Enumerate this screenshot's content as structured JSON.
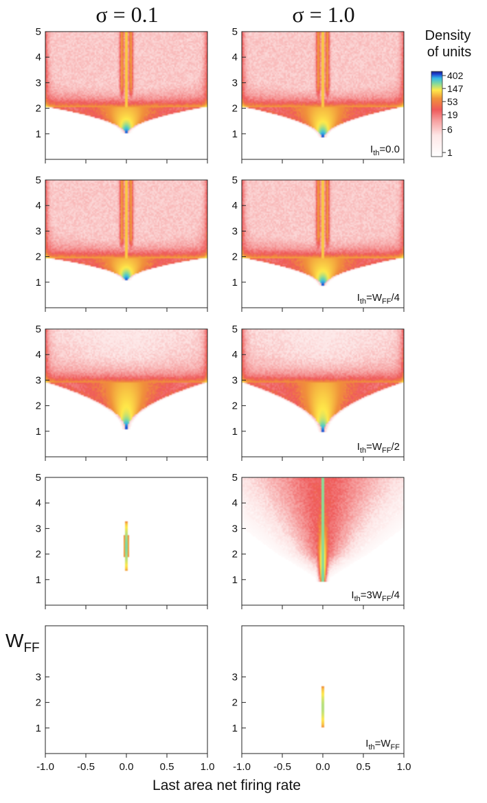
{
  "figure": {
    "column_titles": [
      "σ = 0.1",
      "σ = 1.0"
    ],
    "y_label": {
      "main": "W",
      "sub": "FF"
    },
    "x_label": "Last area net firing rate",
    "colorbar": {
      "title_line1": "Density",
      "title_line2": "of units",
      "ticks": [
        "402",
        "147",
        "53",
        "19",
        "6",
        "1"
      ],
      "tick_values": [
        402,
        147,
        53,
        19,
        6,
        1
      ],
      "range": [
        1,
        402
      ],
      "scale": "log",
      "colors": [
        "#ffffff",
        "#fde6e6",
        "#f6a0a0",
        "#ef5a5a",
        "#f0913a",
        "#ffe94a",
        "#7fd8a0",
        "#36b9e6",
        "#1c3fd0",
        "#1a237e"
      ]
    }
  },
  "chart_data": [
    {
      "type": "heatmap",
      "row": 1,
      "col": 1,
      "sigma": "0.1",
      "condition": "I_th=0.0",
      "annotation": null,
      "pattern": "fan",
      "params": {
        "w_on": 1.0,
        "w_spread": 2.05,
        "ridges": true
      },
      "xlim": [
        -1.0,
        1.0
      ],
      "ylim": [
        0,
        5
      ],
      "yticks": [
        "1",
        "2",
        "3",
        "4",
        "5"
      ],
      "xticks": [
        "-1.0",
        "-0.5",
        "0.0",
        "0.5",
        "1.0"
      ],
      "show_xtick_labels": false
    },
    {
      "type": "heatmap",
      "row": 1,
      "col": 2,
      "sigma": "1.0",
      "condition": "I_th=0.0",
      "annotation": {
        "main": "I",
        "sub": "th",
        "rest": "=0.0"
      },
      "pattern": "fan",
      "params": {
        "w_on": 0.85,
        "w_spread": 2.05,
        "ridges": true
      },
      "xlim": [
        -1.0,
        1.0
      ],
      "ylim": [
        0,
        5
      ],
      "yticks": [
        "1",
        "2",
        "3",
        "4",
        "5"
      ],
      "xticks": [
        "-1.0",
        "-0.5",
        "0.0",
        "0.5",
        "1.0"
      ],
      "show_xtick_labels": false
    },
    {
      "type": "heatmap",
      "row": 2,
      "col": 1,
      "sigma": "0.1",
      "condition": "I_th=W_FF/4",
      "annotation": null,
      "pattern": "fan",
      "params": {
        "w_on": 1.05,
        "w_spread": 1.95,
        "ridges": true
      },
      "xlim": [
        -1.0,
        1.0
      ],
      "ylim": [
        0,
        5
      ],
      "yticks": [
        "1",
        "2",
        "3",
        "4",
        "5"
      ],
      "xticks": [
        "-1.0",
        "-0.5",
        "0.0",
        "0.5",
        "1.0"
      ],
      "show_xtick_labels": false
    },
    {
      "type": "heatmap",
      "row": 2,
      "col": 2,
      "sigma": "1.0",
      "condition": "I_th=W_FF/4",
      "annotation": {
        "main": "I",
        "sub": "th",
        "rest": "=W",
        "sub2": "FF",
        "rest2": "/4"
      },
      "pattern": "fan",
      "params": {
        "w_on": 0.85,
        "w_spread": 1.95,
        "ridges": true
      },
      "xlim": [
        -1.0,
        1.0
      ],
      "ylim": [
        0,
        5
      ],
      "yticks": [
        "1",
        "2",
        "3",
        "4",
        "5"
      ],
      "xticks": [
        "-1.0",
        "-0.5",
        "0.0",
        "0.5",
        "1.0"
      ],
      "show_xtick_labels": false
    },
    {
      "type": "heatmap",
      "row": 3,
      "col": 1,
      "sigma": "0.1",
      "condition": "I_th=W_FF/2",
      "annotation": null,
      "pattern": "fan",
      "params": {
        "w_on": 1.1,
        "w_spread": 2.9,
        "ridges": false
      },
      "xlim": [
        -1.0,
        1.0
      ],
      "ylim": [
        0,
        5
      ],
      "yticks": [
        "1",
        "2",
        "3",
        "4",
        "5"
      ],
      "xticks": [
        "-1.0",
        "-0.5",
        "0.0",
        "0.5",
        "1.0"
      ],
      "show_xtick_labels": false
    },
    {
      "type": "heatmap",
      "row": 3,
      "col": 2,
      "sigma": "1.0",
      "condition": "I_th=W_FF/2",
      "annotation": {
        "main": "I",
        "sub": "th",
        "rest": "=W",
        "sub2": "FF",
        "rest2": "/2"
      },
      "pattern": "fan",
      "params": {
        "w_on": 0.95,
        "w_spread": 2.9,
        "ridges": false
      },
      "xlim": [
        -1.0,
        1.0
      ],
      "ylim": [
        0,
        5
      ],
      "yticks": [
        "1",
        "2",
        "3",
        "4",
        "5"
      ],
      "xticks": [
        "-1.0",
        "-0.5",
        "0.0",
        "0.5",
        "1.0"
      ],
      "show_xtick_labels": false
    },
    {
      "type": "heatmap",
      "row": 4,
      "col": 1,
      "sigma": "0.1",
      "condition": "I_th=3W_FF/4",
      "annotation": null,
      "pattern": "lens",
      "params": {
        "w_lo": 1.3,
        "w_hi": 3.3,
        "half_width": 0.028
      },
      "xlim": [
        -1.0,
        1.0
      ],
      "ylim": [
        0,
        5
      ],
      "yticks": [
        "1",
        "2",
        "3",
        "4",
        "5"
      ],
      "xticks": [
        "-1.0",
        "-0.5",
        "0.0",
        "0.5",
        "1.0"
      ],
      "show_xtick_labels": false
    },
    {
      "type": "heatmap",
      "row": 4,
      "col": 2,
      "sigma": "1.0",
      "condition": "I_th=3W_FF/4",
      "annotation": {
        "main": "I",
        "sub": "th",
        "rest": "=3W",
        "sub2": "FF",
        "rest2": "/4"
      },
      "pattern": "cone",
      "params": {
        "w_on": 0.9
      },
      "xlim": [
        -1.0,
        1.0
      ],
      "ylim": [
        0,
        5
      ],
      "yticks": [
        "1",
        "2",
        "3",
        "4",
        "5"
      ],
      "xticks": [
        "-1.0",
        "-0.5",
        "0.0",
        "0.5",
        "1.0"
      ],
      "show_xtick_labels": false
    },
    {
      "type": "heatmap",
      "row": 5,
      "col": 1,
      "sigma": "0.1",
      "condition": "I_th=W_FF",
      "annotation": null,
      "pattern": "line",
      "params": {},
      "xlim": [
        -1.0,
        1.0
      ],
      "ylim": [
        0,
        5
      ],
      "yticks": [
        "1",
        "2",
        "3"
      ],
      "xticks": [
        "-1.0",
        "-0.5",
        "0.0",
        "0.5",
        "1.0"
      ],
      "show_xtick_labels": true
    },
    {
      "type": "heatmap",
      "row": 5,
      "col": 2,
      "sigma": "1.0",
      "condition": "I_th=W_FF",
      "annotation": {
        "main": "I",
        "sub": "th",
        "rest": "=W",
        "sub2": "FF"
      },
      "pattern": "lens",
      "params": {
        "w_lo": 0.95,
        "w_hi": 2.7,
        "half_width": 0.02
      },
      "xlim": [
        -1.0,
        1.0
      ],
      "ylim": [
        0,
        5
      ],
      "yticks": [
        "1",
        "2",
        "3"
      ],
      "xticks": [
        "-1.0",
        "-0.5",
        "0.0",
        "0.5",
        "1.0"
      ],
      "show_xtick_labels": true
    }
  ]
}
